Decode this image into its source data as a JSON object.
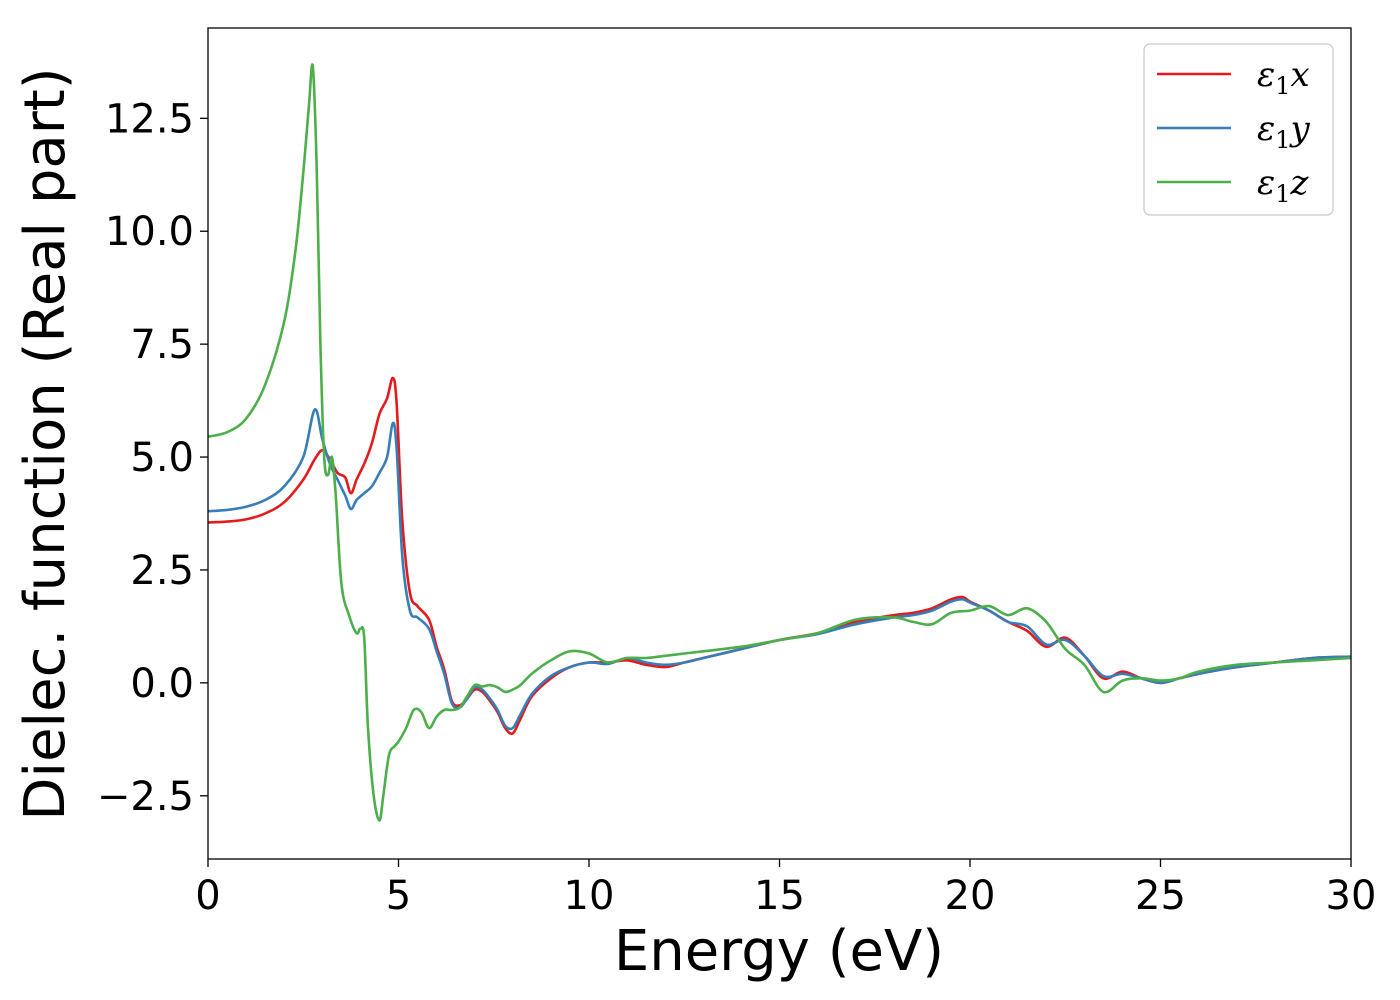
{
  "chart_data": {
    "type": "line",
    "xlabel": "Energy (eV)",
    "ylabel": "Dielec. function (Real part)",
    "xlim": [
      0,
      30
    ],
    "ylim": [
      -3.9,
      14.5
    ],
    "xticks": [
      0,
      5,
      10,
      15,
      20,
      25,
      30
    ],
    "xtick_labels": [
      "0",
      "5",
      "10",
      "15",
      "20",
      "25",
      "30"
    ],
    "yticks": [
      -2.5,
      0,
      2.5,
      5,
      7.5,
      10,
      12.5
    ],
    "ytick_labels": [
      "−2.5",
      "0.0",
      "2.5",
      "5.0",
      "7.5",
      "10.0",
      "12.5"
    ],
    "grid": false,
    "legend_position": "top-right",
    "series": [
      {
        "name": "ε₁x",
        "name_base": "ε",
        "name_sub": "1",
        "name_suffix": "x",
        "color": "#e41a1c",
        "x": [
          0,
          0.5,
          1,
          1.5,
          2,
          2.5,
          2.8,
          3.0,
          3.2,
          3.4,
          3.6,
          3.75,
          3.9,
          4.1,
          4.3,
          4.5,
          4.7,
          4.85,
          4.95,
          5.1,
          5.3,
          5.5,
          5.8,
          6.0,
          6.2,
          6.4,
          6.6,
          6.8,
          7.0,
          7.2,
          7.4,
          7.6,
          7.8,
          8.0,
          8.2,
          8.5,
          9.0,
          9.5,
          10,
          10.5,
          11,
          11.5,
          12,
          12.5,
          13,
          14,
          15,
          16,
          17,
          18,
          18.5,
          19,
          19.5,
          19.8,
          20,
          20.5,
          21,
          21.5,
          22,
          22.5,
          23,
          23.5,
          24,
          24.5,
          25,
          25.5,
          26,
          27,
          28,
          29,
          30
        ],
        "y": [
          3.55,
          3.57,
          3.62,
          3.75,
          4.0,
          4.5,
          4.95,
          5.15,
          4.95,
          4.65,
          4.55,
          4.2,
          4.5,
          4.85,
          5.3,
          5.95,
          6.3,
          6.75,
          6.2,
          3.6,
          2.0,
          1.7,
          1.4,
          0.8,
          0.3,
          -0.4,
          -0.5,
          -0.35,
          -0.15,
          -0.2,
          -0.4,
          -0.65,
          -1.0,
          -1.12,
          -0.8,
          -0.3,
          0.1,
          0.35,
          0.45,
          0.45,
          0.5,
          0.4,
          0.35,
          0.45,
          0.55,
          0.75,
          0.95,
          1.1,
          1.35,
          1.5,
          1.55,
          1.65,
          1.85,
          1.9,
          1.8,
          1.6,
          1.35,
          1.15,
          0.8,
          1.0,
          0.6,
          0.1,
          0.25,
          0.1,
          0.0,
          0.1,
          0.2,
          0.35,
          0.45,
          0.55,
          0.58
        ]
      },
      {
        "name": "ε₁y",
        "name_base": "ε",
        "name_sub": "1",
        "name_suffix": "y",
        "color": "#377eb8",
        "x": [
          0,
          0.5,
          1,
          1.5,
          2,
          2.5,
          2.8,
          3.0,
          3.2,
          3.4,
          3.6,
          3.75,
          3.9,
          4.1,
          4.3,
          4.5,
          4.7,
          4.85,
          4.95,
          5.1,
          5.3,
          5.5,
          5.8,
          6.0,
          6.2,
          6.4,
          6.6,
          6.8,
          7.0,
          7.2,
          7.4,
          7.6,
          7.8,
          8.0,
          8.2,
          8.5,
          9.0,
          9.5,
          10,
          10.5,
          11,
          11.5,
          12,
          12.5,
          13,
          14,
          15,
          16,
          17,
          18,
          18.5,
          19,
          19.5,
          19.8,
          20,
          20.5,
          21,
          21.5,
          22,
          22.5,
          23,
          23.5,
          24,
          24.5,
          25,
          25.5,
          26,
          27,
          28,
          29,
          30
        ],
        "y": [
          3.8,
          3.83,
          3.9,
          4.05,
          4.35,
          5.0,
          6.05,
          5.4,
          4.85,
          4.5,
          4.15,
          3.85,
          4.05,
          4.2,
          4.35,
          4.65,
          5.0,
          5.75,
          5.2,
          2.8,
          1.6,
          1.45,
          1.2,
          0.7,
          0.2,
          -0.45,
          -0.55,
          -0.35,
          -0.1,
          -0.15,
          -0.35,
          -0.6,
          -0.95,
          -1.0,
          -0.7,
          -0.25,
          0.15,
          0.35,
          0.45,
          0.42,
          0.55,
          0.45,
          0.4,
          0.45,
          0.55,
          0.75,
          0.95,
          1.08,
          1.3,
          1.45,
          1.5,
          1.6,
          1.8,
          1.85,
          1.78,
          1.6,
          1.35,
          1.25,
          0.85,
          0.95,
          0.6,
          0.15,
          0.2,
          0.1,
          0.0,
          0.1,
          0.2,
          0.35,
          0.45,
          0.55,
          0.58
        ]
      },
      {
        "name": "ε₁z",
        "name_base": "ε",
        "name_sub": "1",
        "name_suffix": "z",
        "color": "#4daf4a",
        "x": [
          0,
          0.5,
          1,
          1.5,
          2,
          2.3,
          2.5,
          2.65,
          2.75,
          2.85,
          2.95,
          3.05,
          3.15,
          3.25,
          3.35,
          3.5,
          3.7,
          3.9,
          4.0,
          4.1,
          4.2,
          4.35,
          4.5,
          4.6,
          4.75,
          4.9,
          5.0,
          5.2,
          5.4,
          5.6,
          5.8,
          6.0,
          6.2,
          6.4,
          6.6,
          6.8,
          7.0,
          7.2,
          7.4,
          7.6,
          7.8,
          8.0,
          8.2,
          8.5,
          9.0,
          9.5,
          10,
          10.5,
          11,
          11.5,
          12,
          12.5,
          13,
          14,
          15,
          16,
          17,
          18,
          18.5,
          19,
          19.5,
          20,
          20.5,
          21,
          21.5,
          22,
          22.5,
          23,
          23.5,
          24,
          24.5,
          25,
          25.5,
          26,
          27,
          28,
          29,
          30
        ],
        "y": [
          5.45,
          5.55,
          5.85,
          6.6,
          8.0,
          9.6,
          11.3,
          12.8,
          13.65,
          11.5,
          7.5,
          5.0,
          4.6,
          5.0,
          4.2,
          2.2,
          1.5,
          1.1,
          1.2,
          1.0,
          -1.0,
          -2.5,
          -3.05,
          -2.5,
          -1.6,
          -1.4,
          -1.3,
          -1.0,
          -0.6,
          -0.65,
          -1.0,
          -0.75,
          -0.6,
          -0.6,
          -0.55,
          -0.3,
          -0.05,
          -0.08,
          -0.05,
          -0.1,
          -0.2,
          -0.15,
          -0.05,
          0.2,
          0.5,
          0.7,
          0.65,
          0.45,
          0.55,
          0.55,
          0.6,
          0.65,
          0.7,
          0.8,
          0.95,
          1.1,
          1.4,
          1.45,
          1.35,
          1.3,
          1.55,
          1.6,
          1.7,
          1.5,
          1.65,
          1.35,
          0.75,
          0.4,
          -0.2,
          0.05,
          0.1,
          0.05,
          0.1,
          0.25,
          0.4,
          0.45,
          0.5,
          0.55
        ]
      }
    ]
  }
}
